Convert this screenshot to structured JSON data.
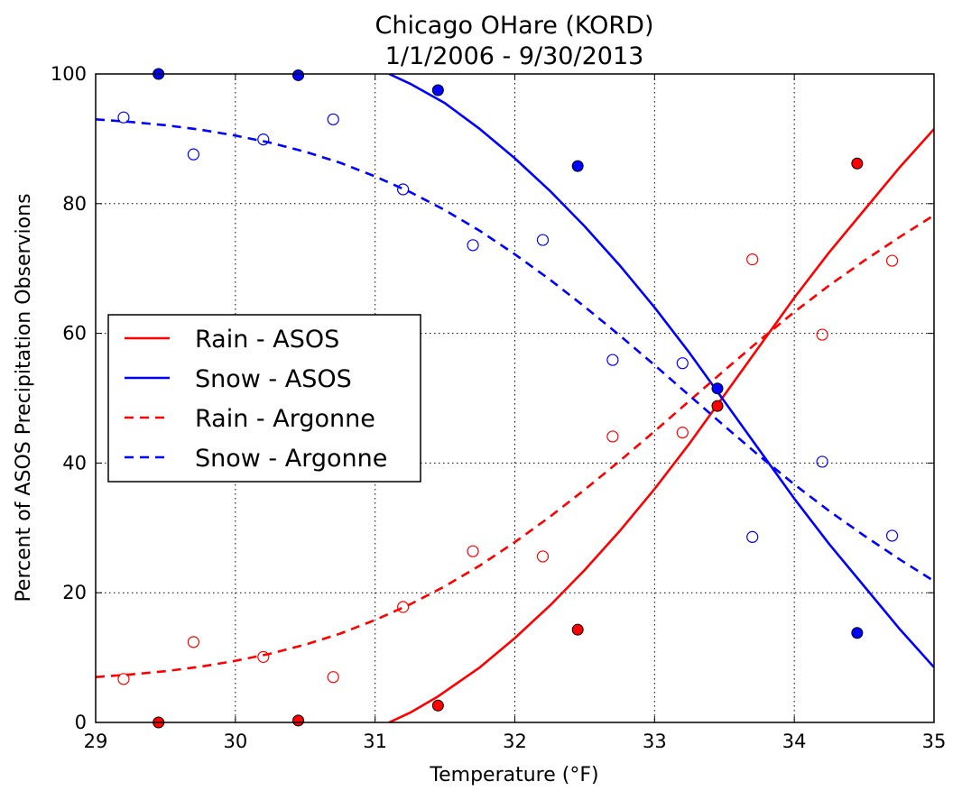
{
  "chart_data": {
    "type": "scatter",
    "title": "Chicago OHare (KORD)",
    "subtitle": "1/1/2006 - 9/30/2013",
    "xlabel": "Temperature (°F)",
    "ylabel": "Percent of ASOS Precipitation Observions",
    "xlim": [
      29,
      35
    ],
    "ylim": [
      0,
      100
    ],
    "xticks": [
      "29",
      "30",
      "31",
      "32",
      "33",
      "34",
      "35"
    ],
    "yticks": [
      "0",
      "20",
      "40",
      "60",
      "80",
      "100"
    ],
    "grid": true,
    "legend_position": "center-left",
    "legend": [
      {
        "label": "Rain - ASOS",
        "color": "#ff0000",
        "style": "solid"
      },
      {
        "label": "Snow - ASOS",
        "color": "#0000ff",
        "style": "solid"
      },
      {
        "label": "Rain - Argonne",
        "color": "#ff0000",
        "style": "dashed"
      },
      {
        "label": "Snow - Argonne",
        "color": "#0000ff",
        "style": "dashed"
      }
    ],
    "series": [
      {
        "name": "Rain - ASOS",
        "kind": "line",
        "color": "#ff0000",
        "dash": false,
        "x": [
          31.1,
          31.25,
          31.45,
          31.75,
          32.0,
          32.25,
          32.5,
          32.75,
          33.0,
          33.25,
          33.5,
          33.75,
          34.0,
          34.25,
          34.5,
          34.75,
          35.0
        ],
        "y": [
          0.0,
          1.5,
          4.0,
          8.5,
          13.0,
          18.0,
          23.5,
          29.5,
          36.0,
          43.0,
          50.5,
          58.0,
          65.5,
          72.5,
          79.0,
          85.5,
          91.5
        ]
      },
      {
        "name": "Snow - ASOS",
        "kind": "line",
        "color": "#0000ff",
        "dash": false,
        "x": [
          31.1,
          31.25,
          31.5,
          31.75,
          32.0,
          32.25,
          32.5,
          32.75,
          33.0,
          33.25,
          33.5,
          33.75,
          34.0,
          34.25,
          34.5,
          34.75,
          35.0
        ],
        "y": [
          100.0,
          98.5,
          95.5,
          91.5,
          87.0,
          82.0,
          76.5,
          70.5,
          64.0,
          57.0,
          49.5,
          42.0,
          34.5,
          27.5,
          21.0,
          14.5,
          8.5
        ]
      },
      {
        "name": "Rain - Argonne",
        "kind": "line",
        "color": "#ff0000",
        "dash": true,
        "x": [
          29.0,
          29.25,
          29.5,
          29.75,
          30.0,
          30.25,
          30.5,
          30.75,
          31.0,
          31.25,
          31.5,
          31.75,
          32.0,
          32.25,
          32.5,
          32.75,
          33.0,
          33.25,
          33.5,
          33.75,
          34.0,
          34.25,
          34.5,
          34.75,
          35.0
        ],
        "y": [
          7.0,
          7.4,
          7.9,
          8.6,
          9.5,
          10.6,
          12.0,
          13.7,
          15.8,
          18.2,
          21.0,
          24.2,
          27.8,
          31.7,
          35.9,
          40.3,
          44.9,
          49.6,
          54.3,
          58.9,
          63.3,
          67.4,
          71.2,
          74.8,
          78.2
        ]
      },
      {
        "name": "Snow - Argonne",
        "kind": "line",
        "color": "#0000ff",
        "dash": true,
        "x": [
          29.0,
          29.25,
          29.5,
          29.75,
          30.0,
          30.25,
          30.5,
          30.75,
          31.0,
          31.25,
          31.5,
          31.75,
          32.0,
          32.25,
          32.5,
          32.75,
          33.0,
          33.25,
          33.5,
          33.75,
          34.0,
          34.25,
          34.5,
          34.75,
          35.0
        ],
        "y": [
          93.0,
          92.6,
          92.1,
          91.4,
          90.5,
          89.4,
          88.0,
          86.3,
          84.2,
          81.8,
          79.0,
          75.8,
          72.2,
          68.3,
          64.1,
          59.7,
          55.1,
          50.4,
          45.7,
          41.1,
          36.7,
          32.6,
          28.8,
          25.2,
          21.8
        ]
      },
      {
        "name": "Rain - ASOS observations",
        "kind": "points",
        "color": "#ff0000",
        "filled": true,
        "x": [
          29.45,
          30.45,
          31.45,
          32.45,
          33.45,
          34.45
        ],
        "y": [
          0.0,
          0.3,
          2.6,
          14.3,
          48.8,
          86.2
        ]
      },
      {
        "name": "Snow - ASOS observations",
        "kind": "points",
        "color": "#0000ff",
        "filled": true,
        "x": [
          29.45,
          30.45,
          31.45,
          32.45,
          33.45,
          34.45
        ],
        "y": [
          100.0,
          99.8,
          97.5,
          85.8,
          51.5,
          13.8
        ]
      },
      {
        "name": "Rain - Argonne observations",
        "kind": "points",
        "color": "#ff0000",
        "filled": false,
        "x": [
          29.2,
          29.7,
          30.2,
          30.7,
          31.2,
          31.7,
          32.2,
          32.7,
          33.2,
          33.7,
          34.2,
          34.7
        ],
        "y": [
          6.7,
          12.4,
          10.1,
          7.0,
          17.8,
          26.4,
          25.6,
          44.1,
          44.7,
          71.4,
          59.8,
          71.2
        ]
      },
      {
        "name": "Snow - Argonne observations",
        "kind": "points",
        "color": "#0000ff",
        "filled": false,
        "x": [
          29.2,
          29.7,
          30.2,
          30.7,
          31.2,
          31.7,
          32.2,
          32.7,
          33.2,
          33.7,
          34.2,
          34.7
        ],
        "y": [
          93.3,
          87.6,
          89.9,
          93.0,
          82.2,
          73.6,
          74.4,
          55.9,
          55.4,
          28.6,
          40.2,
          28.8
        ]
      }
    ]
  }
}
